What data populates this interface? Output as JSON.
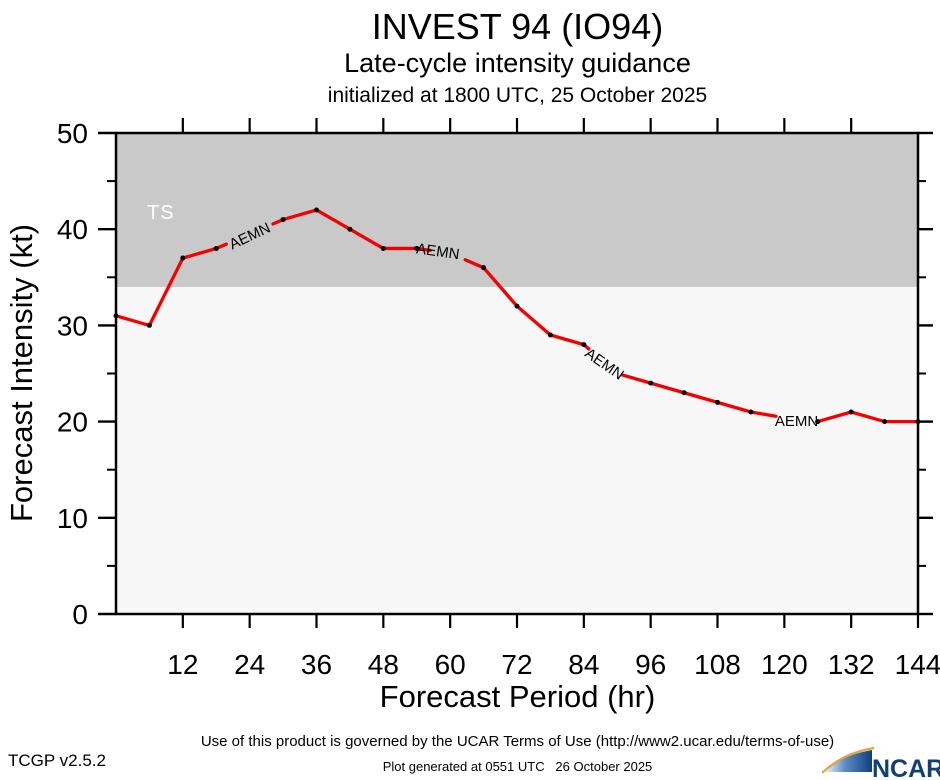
{
  "header": {
    "title": "INVEST 94 (IO94)",
    "subtitle": "Late-cycle intensity guidance",
    "init_line": "initialized at 1800 UTC, 25 October 2025"
  },
  "chart_data": {
    "type": "line",
    "title": "INVEST 94 (IO94)",
    "subtitle": "Late-cycle intensity guidance",
    "initialized": "initialized at 1800 UTC, 25 October 2025",
    "xlabel": "Forecast Period (hr)",
    "ylabel": "Forecast Intensity (kt)",
    "xlim": [
      0,
      144
    ],
    "ylim": [
      0,
      50
    ],
    "x_major_ticks": [
      12,
      24,
      36,
      48,
      60,
      72,
      84,
      96,
      108,
      120,
      132,
      144
    ],
    "y_major_ticks": [
      0,
      10,
      20,
      30,
      40,
      50
    ],
    "y_minor_ticks": [
      5,
      15,
      25,
      35,
      45
    ],
    "grid": false,
    "plot_bg": "#f7f7f7",
    "threshold_band": {
      "label": "TS",
      "from": 34,
      "to": 50,
      "color": "#c9c9c9",
      "label_color": "#ffffff"
    },
    "series": [
      {
        "name": "AEMN",
        "color": "#f40000",
        "marker_color": "#000000",
        "x": [
          0,
          6,
          12,
          18,
          24,
          30,
          36,
          42,
          48,
          54,
          60,
          66,
          72,
          78,
          84,
          90,
          96,
          102,
          108,
          114,
          120,
          126,
          132,
          138,
          144
        ],
        "values": [
          31,
          30,
          37,
          38,
          39.5,
          41,
          42,
          40,
          38,
          38,
          37.5,
          36,
          32,
          29,
          28,
          25,
          24,
          23,
          22,
          21,
          20.4,
          20,
          21,
          20,
          20
        ],
        "label_hours": [
          24,
          60,
          90,
          120
        ]
      }
    ]
  },
  "footer": {
    "terms": "Use of this product is governed by the UCAR Terms of Use (http://www2.ucar.edu/terms-of-use)",
    "generated": "Plot generated at 0551 UTC   26 October 2025",
    "version": "TCGP v2.5.2",
    "logo_text": "NCAR"
  }
}
